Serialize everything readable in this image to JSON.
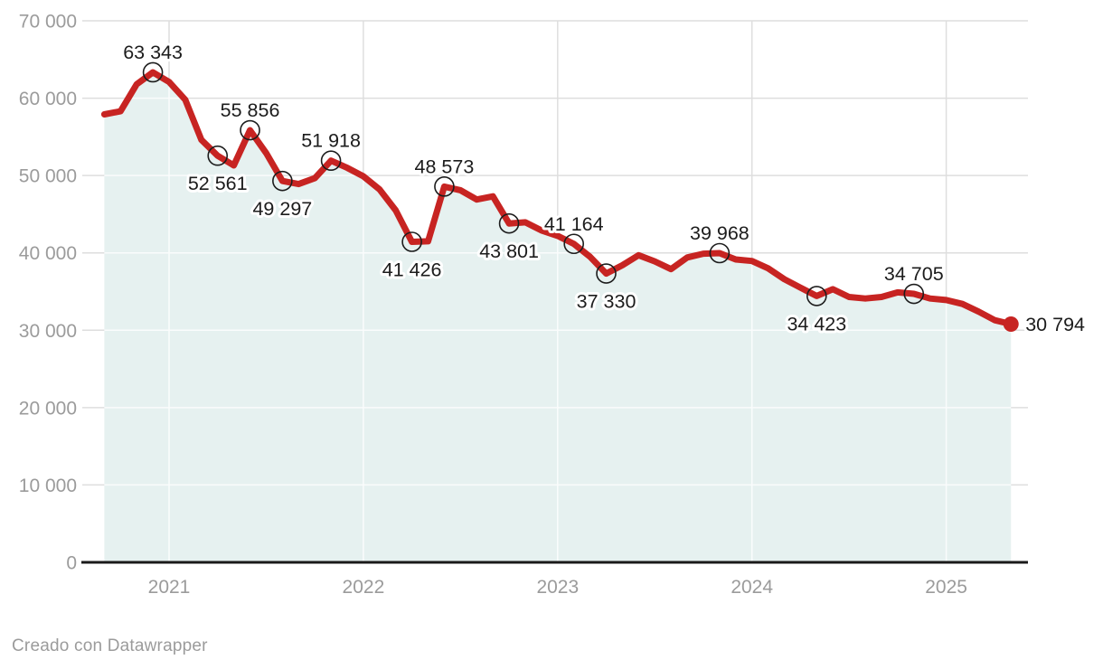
{
  "chart_data": {
    "type": "area",
    "title": "",
    "x": [
      "2020-09",
      "2020-10",
      "2020-11",
      "2020-12",
      "2021-01",
      "2021-02",
      "2021-03",
      "2021-04",
      "2021-05",
      "2021-06",
      "2021-07",
      "2021-08",
      "2021-09",
      "2021-10",
      "2021-11",
      "2021-12",
      "2022-01",
      "2022-02",
      "2022-03",
      "2022-04",
      "2022-05",
      "2022-06",
      "2022-07",
      "2022-08",
      "2022-09",
      "2022-10",
      "2022-11",
      "2022-12",
      "2023-01",
      "2023-02",
      "2023-03",
      "2023-04",
      "2023-05",
      "2023-06",
      "2023-07",
      "2023-08",
      "2023-09",
      "2023-10",
      "2023-11",
      "2023-12",
      "2024-01",
      "2024-02",
      "2024-03",
      "2024-04",
      "2024-05",
      "2024-06",
      "2024-07",
      "2024-08",
      "2024-09",
      "2024-10",
      "2024-11",
      "2024-12",
      "2025-01",
      "2025-02",
      "2025-03",
      "2025-04",
      "2025-05"
    ],
    "values": [
      57900,
      58300,
      61800,
      63343,
      62100,
      59800,
      54600,
      52561,
      51300,
      55856,
      52900,
      49297,
      48900,
      49650,
      51918,
      51000,
      49900,
      48200,
      45500,
      41426,
      41500,
      48573,
      48100,
      46900,
      47300,
      43801,
      43950,
      42900,
      42200,
      41164,
      39500,
      37330,
      38400,
      39700,
      38900,
      37900,
      39400,
      39900,
      39968,
      39150,
      38950,
      38000,
      36600,
      35500,
      34423,
      35300,
      34300,
      34100,
      34300,
      34900,
      34705,
      34100,
      33900,
      33400,
      32400,
      31300,
      30794
    ],
    "x_axis": {
      "ticks": [
        {
          "label": "2021",
          "month": "2021-01"
        },
        {
          "label": "2022",
          "month": "2022-01"
        },
        {
          "label": "2023",
          "month": "2023-01"
        },
        {
          "label": "2024",
          "month": "2024-01"
        },
        {
          "label": "2025",
          "month": "2025-01"
        }
      ]
    },
    "y_axis": {
      "min": 0,
      "max": 70000,
      "grid": true,
      "ticks": [
        {
          "label": "70 000",
          "value": 70000
        },
        {
          "label": "60 000",
          "value": 60000
        },
        {
          "label": "50 000",
          "value": 50000
        },
        {
          "label": "40 000",
          "value": 40000
        },
        {
          "label": "30 000",
          "value": 30000
        },
        {
          "label": "20 000",
          "value": 20000
        },
        {
          "label": "10 000",
          "value": 10000
        },
        {
          "label": "0",
          "value": 0
        }
      ]
    },
    "annotations": [
      {
        "x": "2020-12",
        "value": 63343,
        "text": "63 343",
        "placement": "above",
        "marker": "circle"
      },
      {
        "x": "2021-04",
        "value": 52561,
        "text": "52 561",
        "placement": "below",
        "marker": "circle"
      },
      {
        "x": "2021-06",
        "value": 55856,
        "text": "55 856",
        "placement": "above",
        "marker": "circle"
      },
      {
        "x": "2021-08",
        "value": 49297,
        "text": "49 297",
        "placement": "below",
        "marker": "circle"
      },
      {
        "x": "2021-11",
        "value": 51918,
        "text": "51 918",
        "placement": "above",
        "marker": "circle"
      },
      {
        "x": "2022-04",
        "value": 41426,
        "text": "41 426",
        "placement": "below",
        "marker": "circle"
      },
      {
        "x": "2022-06",
        "value": 48573,
        "text": "48 573",
        "placement": "above",
        "marker": "circle"
      },
      {
        "x": "2022-10",
        "value": 43801,
        "text": "43 801",
        "placement": "below",
        "marker": "circle"
      },
      {
        "x": "2023-02",
        "value": 41164,
        "text": "41 164",
        "placement": "above",
        "marker": "circle"
      },
      {
        "x": "2023-04",
        "value": 37330,
        "text": "37 330",
        "placement": "below",
        "marker": "circle"
      },
      {
        "x": "2023-11",
        "value": 39968,
        "text": "39 968",
        "placement": "above",
        "marker": "circle"
      },
      {
        "x": "2024-05",
        "value": 34423,
        "text": "34 423",
        "placement": "below",
        "marker": "circle"
      },
      {
        "x": "2024-11",
        "value": 34705,
        "text": "34 705",
        "placement": "above",
        "marker": "circle"
      },
      {
        "x": "2025-05",
        "value": 30794,
        "text": "30 794",
        "placement": "right",
        "marker": "dot"
      }
    ],
    "legend": null,
    "colors": {
      "line": "#c72422",
      "area": "#e6f1f0",
      "grid": "#dedede",
      "grid_on_area": "#ffffff",
      "axis": "#1a1a1a",
      "tick_label": "#9b9b9b",
      "data_label": "#1c1c1c"
    }
  },
  "footer": {
    "text": "Creado con Datawrapper"
  }
}
